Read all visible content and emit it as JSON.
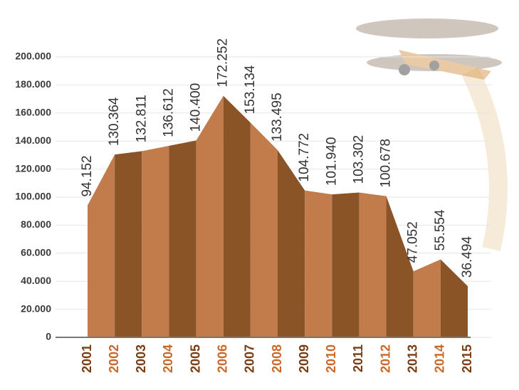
{
  "chart_data": {
    "type": "area",
    "categories": [
      "2001",
      "2002",
      "2003",
      "2004",
      "2005",
      "2006",
      "2007",
      "2008",
      "2009",
      "2010",
      "2011",
      "2012",
      "2013",
      "2014",
      "2015"
    ],
    "values": [
      94152,
      130364,
      132811,
      136612,
      140400,
      172252,
      153134,
      133495,
      104772,
      101940,
      103302,
      100678,
      47052,
      55554,
      36494
    ],
    "value_labels": [
      "94.152",
      "130.364",
      "132.811",
      "136.612",
      "140.400",
      "172.252",
      "153.134",
      "133.495",
      "104.772",
      "101.940",
      "103.302",
      "100.678",
      "47.052",
      "55.554",
      "36.494"
    ],
    "colors": [
      "#c27c4b",
      "#8b5427"
    ],
    "label_colors": [
      "#7a3d12",
      "#c8692a"
    ],
    "ylim": [
      0,
      200000
    ],
    "yticks": [
      {
        "value": 0,
        "label": "0"
      },
      {
        "value": 20000,
        "label": "20.000"
      },
      {
        "value": 40000,
        "label": "40.000"
      },
      {
        "value": 60000,
        "label": "60.000"
      },
      {
        "value": 80000,
        "label": "80.000"
      },
      {
        "value": 100000,
        "label": "100.000"
      },
      {
        "value": 120000,
        "label": "120.000"
      },
      {
        "value": 140000,
        "label": "140.000"
      },
      {
        "value": 160000,
        "label": "160.000"
      },
      {
        "value": 180000,
        "label": "180.000"
      },
      {
        "value": 200000,
        "label": "200.000"
      }
    ],
    "grid": true
  }
}
